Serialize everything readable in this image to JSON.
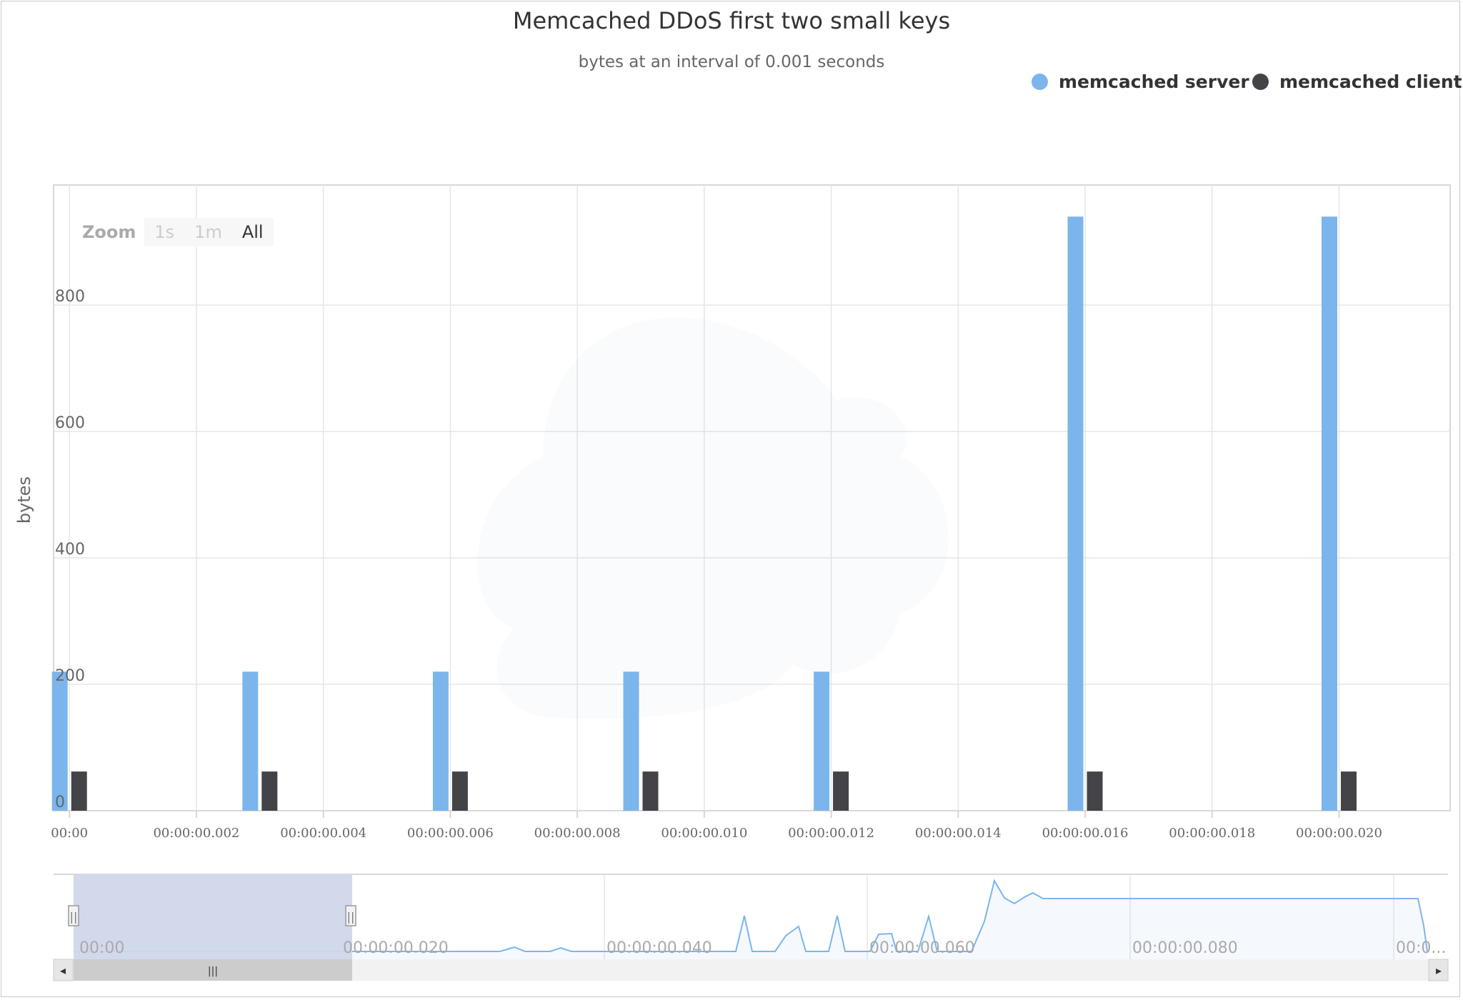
{
  "chart_data": {
    "type": "bar",
    "title": "Memcached DDoS first two small keys",
    "subtitle": "bytes at an interval of 0.001 seconds",
    "xlabel": "",
    "ylabel": "bytes",
    "ylim": [
      0,
      990
    ],
    "y_ticks": [
      "0",
      "200",
      "400",
      "600",
      "800"
    ],
    "x_tick_labels": [
      "00:00",
      "00:00:00.002",
      "00:00:00.004",
      "00:00:00.006",
      "00:00:00.008",
      "00:00:00.010",
      "00:00:00.012",
      "00:00:00.014",
      "00:00:00.016",
      "00:00:00.018",
      "00:00:00.020"
    ],
    "x_range": [
      -0.00025,
      0.02175
    ],
    "series": [
      {
        "name": "memcached server",
        "color": "#7cb5ec",
        "x": [
          0,
          0.003,
          0.006,
          0.009,
          0.012,
          0.016,
          0.02
        ],
        "values": [
          220,
          220,
          220,
          220,
          220,
          940,
          940
        ]
      },
      {
        "name": "memcached client",
        "color": "#434348",
        "x": [
          0,
          0.003,
          0.006,
          0.009,
          0.012,
          0.016,
          0.02
        ],
        "values": [
          62,
          62,
          62,
          62,
          62,
          62,
          62
        ]
      }
    ],
    "legend_position": "top-right",
    "grid": true
  },
  "zoom": {
    "label": "Zoom",
    "buttons": [
      "1s",
      "1m",
      "All"
    ],
    "active": "All"
  },
  "navigator": {
    "tick_labels": [
      "00:00",
      "00:00:00.020",
      "00:00:00.040",
      "00:00:00.060",
      "00:00:00.080",
      "00:0..."
    ],
    "handle_glyph": "||",
    "scrollbar_grip": "|||",
    "left_arrow": "◂",
    "right_arrow": "▸",
    "series_color": "#7cb5ec",
    "selection_color": "#d0d7ea"
  }
}
